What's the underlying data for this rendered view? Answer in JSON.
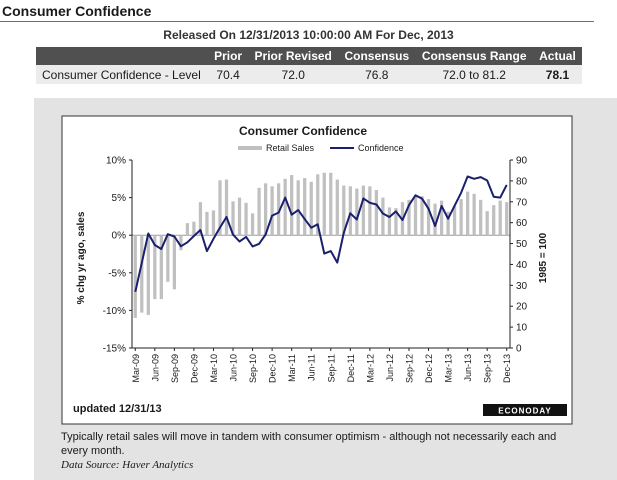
{
  "page": {
    "title": "Consumer Confidence",
    "release": "Released On 12/31/2013 10:00:00 AM For Dec, 2013"
  },
  "table": {
    "headers": [
      "",
      "Prior",
      "Prior Revised",
      "Consensus",
      "Consensus Range",
      "Actual"
    ],
    "row": {
      "name": "Consumer Confidence - Level",
      "prior": "70.4",
      "prior_revised": "72.0",
      "consensus": "76.8",
      "consensus_range": "72.0  to 81.2",
      "actual": "78.1"
    }
  },
  "note": "Typically retail sales will move in tandem with consumer optimism - although not necessarily each and every month.",
  "source": "Data Source: Haver Analytics",
  "colors": {
    "bar": "#c0c0c0",
    "line": "#1a1f6e",
    "panel": "#e3e3e3",
    "header": "#505050"
  },
  "chart_data": {
    "type": "bar+line",
    "title": "Consumer Confidence",
    "updated": "updated 12/31/13",
    "brand": "ECONODAY",
    "left_axis": {
      "label": "% chg yr ago, sales",
      "ticks": [
        "10%",
        "5%",
        "0%",
        "-5%",
        "-10%",
        "-15%"
      ],
      "tick_values": [
        10,
        5,
        0,
        -5,
        -10,
        -15
      ],
      "range": [
        -15,
        10
      ]
    },
    "right_axis": {
      "label": "1985 = 100",
      "ticks": [
        "90",
        "80",
        "70",
        "60",
        "50",
        "40",
        "30",
        "20",
        "10",
        "0"
      ],
      "tick_values": [
        90,
        80,
        70,
        60,
        50,
        40,
        30,
        20,
        10,
        0
      ],
      "range": [
        0,
        90
      ]
    },
    "x_labels": [
      "Mar-09",
      "Jun-09",
      "Sep-09",
      "Dec-09",
      "Mar-10",
      "Jun-10",
      "Sep-10",
      "Dec-10",
      "Mar-11",
      "Jun-11",
      "Sep-11",
      "Dec-11",
      "Mar-12",
      "Jun-12",
      "Sep-12",
      "Dec-12",
      "Mar-13",
      "Jun-13",
      "Sep-13",
      "Dec-13"
    ],
    "months": [
      "Mar-09",
      "Apr-09",
      "May-09",
      "Jun-09",
      "Jul-09",
      "Aug-09",
      "Sep-09",
      "Oct-09",
      "Nov-09",
      "Dec-09",
      "Jan-10",
      "Feb-10",
      "Mar-10",
      "Apr-10",
      "May-10",
      "Jun-10",
      "Jul-10",
      "Aug-10",
      "Sep-10",
      "Oct-10",
      "Nov-10",
      "Dec-10",
      "Jan-11",
      "Feb-11",
      "Mar-11",
      "Apr-11",
      "May-11",
      "Jun-11",
      "Jul-11",
      "Aug-11",
      "Sep-11",
      "Oct-11",
      "Nov-11",
      "Dec-11",
      "Jan-12",
      "Feb-12",
      "Mar-12",
      "Apr-12",
      "May-12",
      "Jun-12",
      "Jul-12",
      "Aug-12",
      "Sep-12",
      "Oct-12",
      "Nov-12",
      "Dec-12",
      "Jan-13",
      "Feb-13",
      "Mar-13",
      "Apr-13",
      "May-13",
      "Jun-13",
      "Jul-13",
      "Aug-13",
      "Sep-13",
      "Oct-13",
      "Nov-13",
      "Dec-13"
    ],
    "series": [
      {
        "name": "Retail Sales",
        "kind": "bar",
        "axis": "left",
        "values": [
          -11.0,
          -10.3,
          -10.6,
          -8.5,
          -8.5,
          -6.2,
          -7.2,
          -2.0,
          1.6,
          1.8,
          4.4,
          3.1,
          3.3,
          7.3,
          7.4,
          4.5,
          5.0,
          4.3,
          2.9,
          6.3,
          6.9,
          6.5,
          6.9,
          7.5,
          8.0,
          7.3,
          7.6,
          7.1,
          8.1,
          8.3,
          8.3,
          7.4,
          6.6,
          6.5,
          6.2,
          6.6,
          6.5,
          6.0,
          5.0,
          3.7,
          3.6,
          4.4,
          4.7,
          5.1,
          5.2,
          4.8,
          4.2,
          4.6,
          3.1,
          3.9,
          4.8,
          5.8,
          5.5,
          4.7,
          3.2,
          4.0,
          4.6,
          4.4
        ]
      },
      {
        "name": "Confidence",
        "kind": "line",
        "axis": "right",
        "values": [
          26.9,
          40.8,
          54.8,
          49.3,
          47.4,
          54.5,
          53.4,
          48.7,
          50.6,
          53.6,
          56.5,
          46.4,
          52.3,
          57.7,
          62.7,
          54.3,
          51.0,
          53.2,
          48.6,
          49.9,
          54.3,
          63.4,
          64.8,
          72.0,
          63.8,
          66.0,
          61.7,
          57.6,
          59.2,
          45.2,
          46.4,
          40.9,
          55.2,
          64.5,
          61.5,
          71.6,
          69.5,
          68.7,
          64.4,
          62.7,
          65.4,
          61.3,
          68.4,
          73.1,
          71.5,
          66.7,
          58.4,
          68.0,
          61.9,
          68.1,
          74.3,
          82.1,
          81.0,
          81.8,
          80.2,
          72.4,
          72.0,
          78.1
        ]
      }
    ]
  }
}
